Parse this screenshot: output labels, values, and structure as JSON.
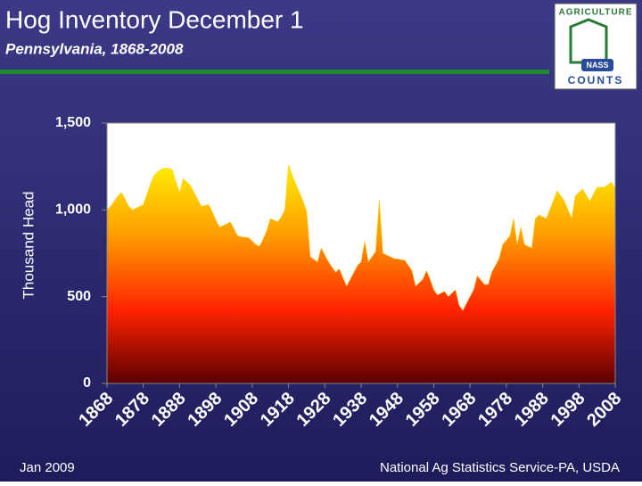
{
  "chart_data": {
    "type": "area",
    "title": "Hog Inventory December 1",
    "subtitle": "Pennsylvania, 1868-2008",
    "ylabel": "Thousand Head",
    "x": [
      1868,
      1869,
      1870,
      1871,
      1872,
      1873,
      1874,
      1875,
      1876,
      1877,
      1878,
      1879,
      1880,
      1881,
      1882,
      1883,
      1884,
      1885,
      1886,
      1887,
      1888,
      1889,
      1890,
      1891,
      1892,
      1893,
      1894,
      1895,
      1896,
      1897,
      1898,
      1899,
      1900,
      1901,
      1902,
      1903,
      1904,
      1905,
      1906,
      1907,
      1908,
      1909,
      1910,
      1911,
      1912,
      1913,
      1914,
      1915,
      1916,
      1917,
      1918,
      1919,
      1920,
      1921,
      1922,
      1923,
      1924,
      1925,
      1926,
      1927,
      1928,
      1929,
      1930,
      1931,
      1932,
      1933,
      1934,
      1935,
      1936,
      1937,
      1938,
      1939,
      1940,
      1941,
      1942,
      1943,
      1944,
      1945,
      1946,
      1947,
      1948,
      1949,
      1950,
      1951,
      1952,
      1953,
      1954,
      1955,
      1956,
      1957,
      1958,
      1959,
      1960,
      1961,
      1962,
      1963,
      1964,
      1965,
      1966,
      1967,
      1968,
      1969,
      1970,
      1971,
      1972,
      1973,
      1974,
      1975,
      1976,
      1977,
      1978,
      1979,
      1980,
      1981,
      1982,
      1983,
      1984,
      1985,
      1986,
      1987,
      1988,
      1989,
      1990,
      1991,
      1992,
      1993,
      1994,
      1995,
      1996,
      1997,
      1998,
      1999,
      2000,
      2001,
      2002,
      2003,
      2004,
      2005,
      2006,
      2007,
      2008
    ],
    "values": [
      1000,
      1020,
      1050,
      1080,
      1100,
      1060,
      1020,
      1000,
      1010,
      1020,
      1030,
      1090,
      1150,
      1200,
      1220,
      1235,
      1240,
      1240,
      1230,
      1160,
      1100,
      1180,
      1160,
      1140,
      1100,
      1060,
      1020,
      1025,
      1030,
      990,
      940,
      900,
      910,
      920,
      930,
      890,
      850,
      845,
      842,
      840,
      820,
      800,
      790,
      830,
      880,
      950,
      940,
      930,
      960,
      1000,
      1260,
      1200,
      1150,
      1100,
      1050,
      990,
      730,
      715,
      700,
      780,
      740,
      700,
      670,
      640,
      660,
      610,
      560,
      600,
      640,
      680,
      700,
      820,
      700,
      730,
      760,
      1060,
      750,
      740,
      730,
      720,
      717,
      713,
      710,
      680,
      650,
      560,
      580,
      600,
      650,
      600,
      540,
      510,
      520,
      530,
      500,
      520,
      540,
      450,
      420,
      460,
      500,
      540,
      620,
      595,
      570,
      570,
      640,
      680,
      720,
      800,
      825,
      850,
      950,
      800,
      900,
      800,
      790,
      780,
      950,
      970,
      960,
      950,
      1000,
      1055,
      1110,
      1080,
      1050,
      1000,
      950,
      1080,
      1100,
      1120,
      1085,
      1050,
      1090,
      1130,
      1130,
      1130,
      1145,
      1160,
      1120
    ],
    "xlim": [
      1868,
      2008
    ],
    "xticks": [
      1868,
      1878,
      1888,
      1898,
      1908,
      1918,
      1928,
      1938,
      1948,
      1958,
      1968,
      1978,
      1988,
      1998,
      2008
    ],
    "ylim": [
      0,
      1500
    ],
    "yticks": [
      0,
      500,
      {
        "value": 1000,
        "label": "1,000"
      },
      {
        "value": 1500,
        "label": "1,500"
      }
    ],
    "colors": [
      "#ffee00",
      "#ff9900",
      "#ff2200",
      "#5a0000"
    ]
  },
  "footer": {
    "left": "Jan 2009",
    "right": "National Ag Statistics Service-PA, USDA"
  },
  "logo": {
    "top": "AGRICULTURE",
    "bottom": "COUNTS",
    "badge": "NASS"
  }
}
